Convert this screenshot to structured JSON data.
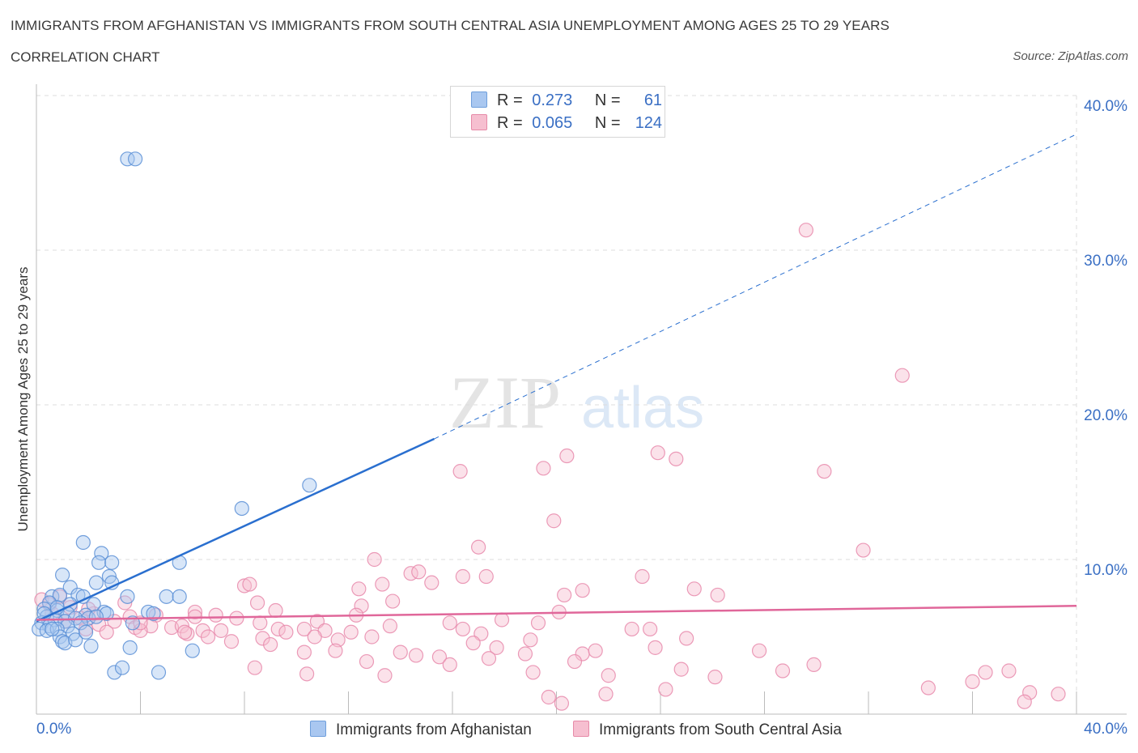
{
  "title": "IMMIGRANTS FROM AFGHANISTAN VS IMMIGRANTS FROM SOUTH CENTRAL ASIA UNEMPLOYMENT AMONG AGES 25 TO 29 YEARS",
  "subtitle": "CORRELATION CHART",
  "source": "Source: ZipAtlas.com",
  "watermark": {
    "zip": "ZIP",
    "atlas": "atlas"
  },
  "legend": {
    "r_label": "R =",
    "n_label": "N =",
    "rows": [
      {
        "r": "0.273",
        "n": "61",
        "color": "#a9c7f0",
        "border": "#6f9fdc"
      },
      {
        "r": "0.065",
        "n": "124",
        "color": "#f6bfd0",
        "border": "#e68aa8"
      }
    ]
  },
  "colors": {
    "blue_fill": "#a9c7f0",
    "blue_stroke": "#5b8fd6",
    "blue_line": "#2a6fcf",
    "pink_fill": "#f6bfd0",
    "pink_stroke": "#e78aab",
    "pink_line": "#e0679a",
    "grid": "#dddddd",
    "axis_label": "#3a6fc4"
  },
  "chart_data": {
    "type": "scatter",
    "xlabel": "",
    "ylabel": "Unemployment Among Ages 25 to 29 years",
    "xlim": [
      0,
      40
    ],
    "ylim": [
      0,
      40
    ],
    "x_tick_labels": [
      "0.0%",
      "40.0%"
    ],
    "y_tick_labels": [
      {
        "value": 10,
        "label": "10.0%"
      },
      {
        "value": 20,
        "label": "20.0%"
      },
      {
        "value": 30,
        "label": "30.0%"
      },
      {
        "value": 40,
        "label": "40.0%"
      }
    ],
    "grid": true,
    "series": [
      {
        "name": "Immigrants from Afghanistan",
        "stats": {
          "R": 0.273,
          "N": 61
        },
        "trend": {
          "x0": 0,
          "y0": 6.0,
          "x1": 15.3,
          "y1": 17.8,
          "dash_x1": 40,
          "dash_y1": 37.5
        },
        "points": [
          [
            3.5,
            35.9
          ],
          [
            3.8,
            35.9
          ],
          [
            10.5,
            14.8
          ],
          [
            7.9,
            13.3
          ],
          [
            1.8,
            11.1
          ],
          [
            2.5,
            10.4
          ],
          [
            2.4,
            9.8
          ],
          [
            2.9,
            9.8
          ],
          [
            5.5,
            9.8
          ],
          [
            1.0,
            9.0
          ],
          [
            2.8,
            8.9
          ],
          [
            1.3,
            8.2
          ],
          [
            2.3,
            8.5
          ],
          [
            2.9,
            8.5
          ],
          [
            0.6,
            7.6
          ],
          [
            0.9,
            7.7
          ],
          [
            1.6,
            7.7
          ],
          [
            1.8,
            7.6
          ],
          [
            3.5,
            7.6
          ],
          [
            5.0,
            7.6
          ],
          [
            5.5,
            7.6
          ],
          [
            0.5,
            7.2
          ],
          [
            1.3,
            7.1
          ],
          [
            2.2,
            7.1
          ],
          [
            0.3,
            6.8
          ],
          [
            0.8,
            6.7
          ],
          [
            1.2,
            6.5
          ],
          [
            1.9,
            6.4
          ],
          [
            2.6,
            6.6
          ],
          [
            4.3,
            6.6
          ],
          [
            0.4,
            6.3
          ],
          [
            0.7,
            6.1
          ],
          [
            1.1,
            6.0
          ],
          [
            1.5,
            6.2
          ],
          [
            2.0,
            6.2
          ],
          [
            2.7,
            6.5
          ],
          [
            4.5,
            6.5
          ],
          [
            0.2,
            5.9
          ],
          [
            0.5,
            5.7
          ],
          [
            1.2,
            5.7
          ],
          [
            1.7,
            5.9
          ],
          [
            3.7,
            5.9
          ],
          [
            0.1,
            5.5
          ],
          [
            0.4,
            5.4
          ],
          [
            0.8,
            5.5
          ],
          [
            1.4,
            5.2
          ],
          [
            0.9,
            5.0
          ],
          [
            1.0,
            4.7
          ],
          [
            1.1,
            4.6
          ],
          [
            1.5,
            4.8
          ],
          [
            2.1,
            4.4
          ],
          [
            3.6,
            4.3
          ],
          [
            6.0,
            4.1
          ],
          [
            3.0,
            2.7
          ],
          [
            3.3,
            3.0
          ],
          [
            4.7,
            2.7
          ],
          [
            0.3,
            6.5
          ],
          [
            0.6,
            5.5
          ],
          [
            1.9,
            5.3
          ],
          [
            2.3,
            6.3
          ],
          [
            0.8,
            6.9
          ]
        ]
      },
      {
        "name": "Immigrants from South Central Asia",
        "stats": {
          "R": 0.065,
          "N": 124
        },
        "trend": {
          "x0": 0,
          "y0": 6.1,
          "x1": 40,
          "y1": 7.0
        },
        "points": [
          [
            29.6,
            31.3
          ],
          [
            33.3,
            21.9
          ],
          [
            16.3,
            15.7
          ],
          [
            19.5,
            15.9
          ],
          [
            20.4,
            16.7
          ],
          [
            23.9,
            16.9
          ],
          [
            24.6,
            16.5
          ],
          [
            30.3,
            15.7
          ],
          [
            19.9,
            12.5
          ],
          [
            17.0,
            10.8
          ],
          [
            13.0,
            10.0
          ],
          [
            31.8,
            10.6
          ],
          [
            14.4,
            9.1
          ],
          [
            14.7,
            9.2
          ],
          [
            16.4,
            8.9
          ],
          [
            17.3,
            8.9
          ],
          [
            23.3,
            8.9
          ],
          [
            8.0,
            8.3
          ],
          [
            8.2,
            8.4
          ],
          [
            13.3,
            8.4
          ],
          [
            15.2,
            8.5
          ],
          [
            12.4,
            8.1
          ],
          [
            21.0,
            8.0
          ],
          [
            20.3,
            7.7
          ],
          [
            25.3,
            8.1
          ],
          [
            26.2,
            7.7
          ],
          [
            3.4,
            7.2
          ],
          [
            8.5,
            7.2
          ],
          [
            12.5,
            7.0
          ],
          [
            13.7,
            7.3
          ],
          [
            0.2,
            7.4
          ],
          [
            0.5,
            7.1
          ],
          [
            1.3,
            6.9
          ],
          [
            2.2,
            6.5
          ],
          [
            3.0,
            6.0
          ],
          [
            3.6,
            6.3
          ],
          [
            4.6,
            6.4
          ],
          [
            6.1,
            6.6
          ],
          [
            6.9,
            6.4
          ],
          [
            7.7,
            6.2
          ],
          [
            9.2,
            6.7
          ],
          [
            10.8,
            6.0
          ],
          [
            12.3,
            6.4
          ],
          [
            15.9,
            5.9
          ],
          [
            17.9,
            6.1
          ],
          [
            19.3,
            5.9
          ],
          [
            20.1,
            6.6
          ],
          [
            0.6,
            6.5
          ],
          [
            1.7,
            6.2
          ],
          [
            2.4,
            5.8
          ],
          [
            3.8,
            5.6
          ],
          [
            4.4,
            5.7
          ],
          [
            5.2,
            5.6
          ],
          [
            5.6,
            5.7
          ],
          [
            6.4,
            5.4
          ],
          [
            7.1,
            5.4
          ],
          [
            8.6,
            5.9
          ],
          [
            9.3,
            5.5
          ],
          [
            10.3,
            5.5
          ],
          [
            11.1,
            5.4
          ],
          [
            12.1,
            5.3
          ],
          [
            13.6,
            5.7
          ],
          [
            16.4,
            5.5
          ],
          [
            22.9,
            5.5
          ],
          [
            23.6,
            5.5
          ],
          [
            1.9,
            5.5
          ],
          [
            2.7,
            5.3
          ],
          [
            4.0,
            5.4
          ],
          [
            5.8,
            5.2
          ],
          [
            6.6,
            5.0
          ],
          [
            7.5,
            4.7
          ],
          [
            8.7,
            4.9
          ],
          [
            9.6,
            5.3
          ],
          [
            10.7,
            5.0
          ],
          [
            11.6,
            4.8
          ],
          [
            12.9,
            5.0
          ],
          [
            17.1,
            5.2
          ],
          [
            19.0,
            4.8
          ],
          [
            25.0,
            4.9
          ],
          [
            9.0,
            4.5
          ],
          [
            10.3,
            4.0
          ],
          [
            11.5,
            4.1
          ],
          [
            14.0,
            4.0
          ],
          [
            14.6,
            3.8
          ],
          [
            15.5,
            3.7
          ],
          [
            16.8,
            4.6
          ],
          [
            17.7,
            4.3
          ],
          [
            18.8,
            3.9
          ],
          [
            21.0,
            3.9
          ],
          [
            21.5,
            4.1
          ],
          [
            23.8,
            4.3
          ],
          [
            27.8,
            4.1
          ],
          [
            8.4,
            3.0
          ],
          [
            10.4,
            2.6
          ],
          [
            12.7,
            3.4
          ],
          [
            13.4,
            2.5
          ],
          [
            15.9,
            3.2
          ],
          [
            17.4,
            3.6
          ],
          [
            20.7,
            3.4
          ],
          [
            22.0,
            2.5
          ],
          [
            24.8,
            2.9
          ],
          [
            26.1,
            2.4
          ],
          [
            28.7,
            2.8
          ],
          [
            29.9,
            3.2
          ],
          [
            34.3,
            1.7
          ],
          [
            36.0,
            2.1
          ],
          [
            36.5,
            2.7
          ],
          [
            37.4,
            2.8
          ],
          [
            19.1,
            2.7
          ],
          [
            19.7,
            1.1
          ],
          [
            20.2,
            0.7
          ],
          [
            21.9,
            1.3
          ],
          [
            24.2,
            1.6
          ],
          [
            38.2,
            1.4
          ],
          [
            38.0,
            0.8
          ],
          [
            39.3,
            1.3
          ],
          [
            4.0,
            5.9
          ],
          [
            6.1,
            6.3
          ],
          [
            1.1,
            6.0
          ],
          [
            0.9,
            7.6
          ],
          [
            5.7,
            5.3
          ],
          [
            2.0,
            6.8
          ]
        ]
      }
    ]
  }
}
